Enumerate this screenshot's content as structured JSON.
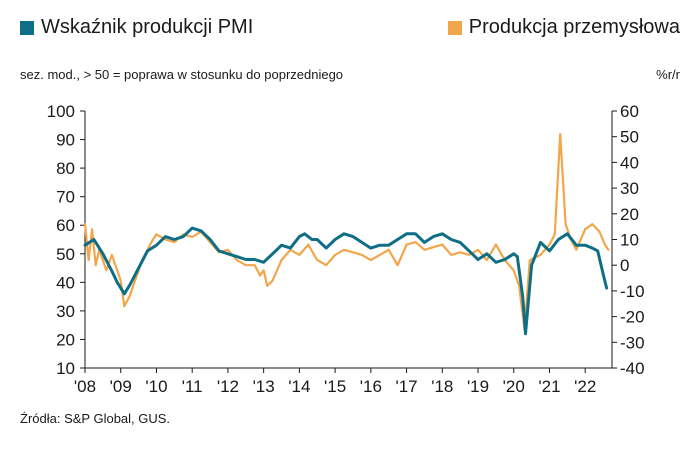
{
  "legend": {
    "pmi_label": "Wskaźnik produkcji PMI",
    "prod_label": "Produkcja przemysłowa"
  },
  "note": "sez. mod., > 50 = poprawa w stosunku do poprzedniego",
  "right_unit": "%r/r",
  "source": "Źródła:  S&P Global, GUS.",
  "colors": {
    "pmi": "#0e6e86",
    "prod": "#f2a64b",
    "axis": "#1a1a1a"
  },
  "chart_data": {
    "type": "line",
    "x_tick_labels": [
      "'08",
      "'09",
      "'10",
      "'11",
      "'12",
      "'13",
      "'14",
      "'15",
      "'16",
      "'17",
      "'18",
      "'19",
      "'20",
      "'21",
      "'22"
    ],
    "x_range": [
      2008.0,
      2022.75
    ],
    "y_left": {
      "range": [
        10,
        100
      ],
      "ticks": [
        10,
        20,
        30,
        40,
        50,
        60,
        70,
        80,
        90,
        100
      ]
    },
    "y_right": {
      "range": [
        -40,
        60
      ],
      "ticks": [
        -40,
        -30,
        -20,
        -10,
        0,
        10,
        20,
        30,
        40,
        50,
        60
      ],
      "unit": "%r/r"
    },
    "grid": false,
    "legend_position": "top",
    "series": [
      {
        "name": "Wskaźnik produkcji PMI",
        "axis": "left",
        "color": "#0e6e86",
        "x": [
          2008.0,
          2008.25,
          2008.5,
          2008.75,
          2008.9,
          2009.1,
          2009.25,
          2009.5,
          2009.75,
          2010.0,
          2010.25,
          2010.5,
          2010.75,
          2011.0,
          2011.25,
          2011.5,
          2011.75,
          2012.0,
          2012.25,
          2012.5,
          2012.75,
          2013.0,
          2013.25,
          2013.5,
          2013.75,
          2014.0,
          2014.15,
          2014.35,
          2014.5,
          2014.75,
          2015.0,
          2015.25,
          2015.5,
          2015.75,
          2016.0,
          2016.25,
          2016.5,
          2016.75,
          2017.0,
          2017.25,
          2017.5,
          2017.75,
          2018.0,
          2018.25,
          2018.5,
          2018.75,
          2019.0,
          2019.25,
          2019.5,
          2019.75,
          2020.0,
          2020.1,
          2020.25,
          2020.33,
          2020.5,
          2020.75,
          2021.0,
          2021.25,
          2021.5,
          2021.75,
          2022.0,
          2022.2,
          2022.35,
          2022.5,
          2022.6
        ],
        "values": [
          53,
          55,
          50,
          44,
          40,
          36,
          39,
          45,
          51,
          53,
          56,
          55,
          56,
          59,
          58,
          55,
          51,
          50,
          49,
          48,
          48,
          47,
          50,
          53,
          52,
          56,
          57,
          55,
          55,
          52,
          55,
          57,
          56,
          54,
          52,
          53,
          53,
          55,
          57,
          57,
          54,
          56,
          57,
          55,
          54,
          51,
          48,
          50,
          47,
          48,
          50,
          49,
          35,
          22,
          46,
          54,
          51,
          55,
          57,
          53,
          53,
          52,
          51,
          43,
          38
        ]
      },
      {
        "name": "Produkcja przemysłowa",
        "axis": "right",
        "color": "#f2a64b",
        "x": [
          2008.0,
          2008.1,
          2008.2,
          2008.3,
          2008.4,
          2008.6,
          2008.75,
          2008.9,
          2009.0,
          2009.1,
          2009.25,
          2009.4,
          2009.6,
          2009.75,
          2009.9,
          2010.0,
          2010.25,
          2010.5,
          2010.75,
          2011.0,
          2011.25,
          2011.5,
          2011.75,
          2012.0,
          2012.25,
          2012.5,
          2012.75,
          2012.9,
          2013.0,
          2013.1,
          2013.25,
          2013.5,
          2013.75,
          2014.0,
          2014.25,
          2014.5,
          2014.75,
          2015.0,
          2015.25,
          2015.5,
          2015.75,
          2016.0,
          2016.25,
          2016.5,
          2016.75,
          2017.0,
          2017.25,
          2017.5,
          2017.75,
          2018.0,
          2018.25,
          2018.5,
          2018.75,
          2019.0,
          2019.25,
          2019.5,
          2019.75,
          2020.0,
          2020.15,
          2020.3,
          2020.45,
          2020.6,
          2020.75,
          2021.0,
          2021.15,
          2021.3,
          2021.45,
          2021.6,
          2021.75,
          2022.0,
          2022.2,
          2022.4,
          2022.55,
          2022.65
        ],
        "values": [
          16,
          2,
          14,
          0,
          6,
          -2,
          4,
          -2,
          -6,
          -16,
          -12,
          -6,
          2,
          6,
          10,
          12,
          10,
          9,
          12,
          11,
          13,
          9,
          5,
          6,
          2,
          0,
          0,
          -4,
          -2,
          -8,
          -6,
          2,
          6,
          4,
          8,
          2,
          0,
          4,
          6,
          5,
          4,
          2,
          4,
          6,
          0,
          8,
          9,
          6,
          7,
          8,
          4,
          5,
          4,
          6,
          2,
          8,
          2,
          -2,
          -8,
          -25,
          2,
          3,
          4,
          8,
          12,
          51,
          16,
          10,
          6,
          14,
          16,
          13,
          8,
          6
        ]
      }
    ]
  }
}
